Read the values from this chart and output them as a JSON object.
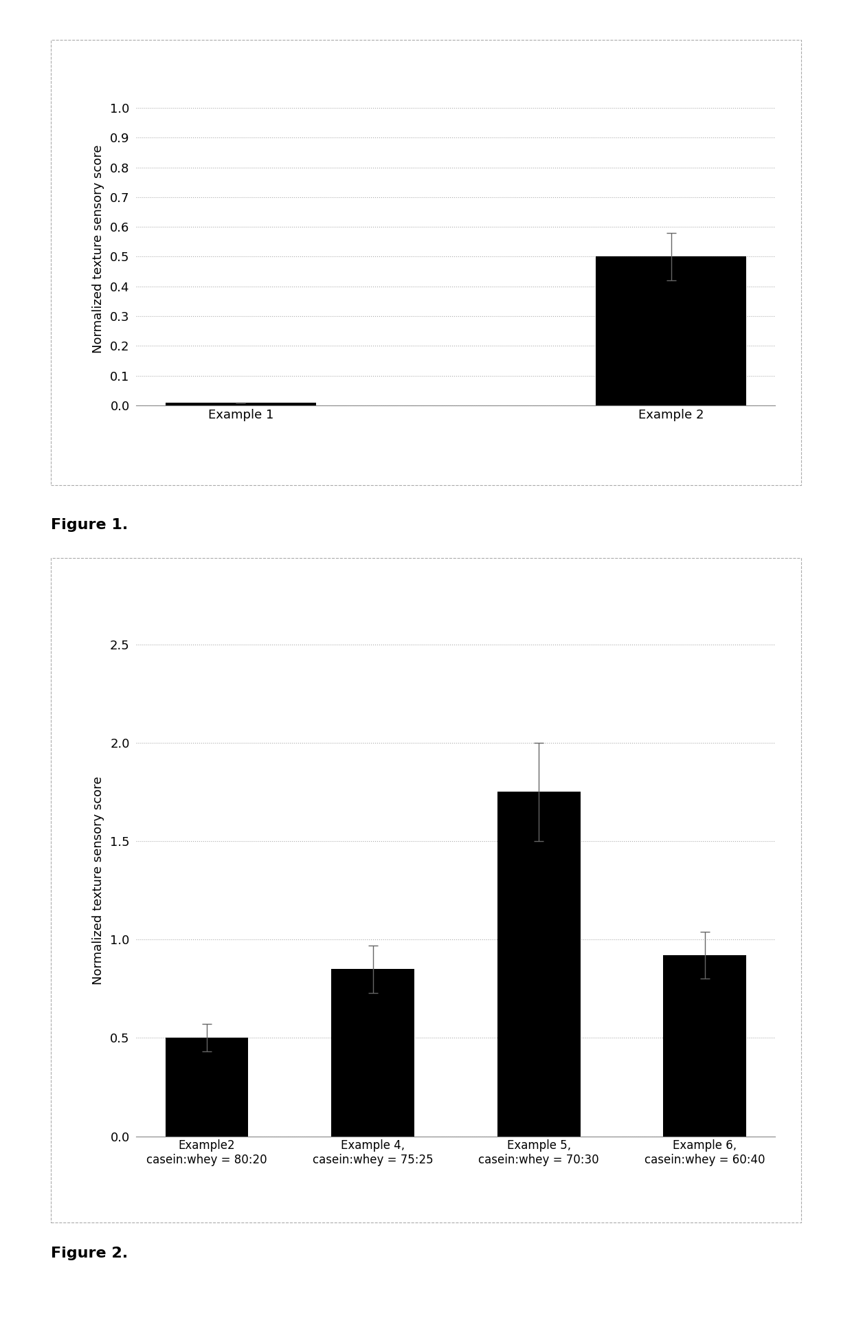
{
  "fig1": {
    "categories": [
      "Example 1",
      "Example 2"
    ],
    "values": [
      0.01,
      0.5
    ],
    "errors": [
      0.0,
      0.08
    ],
    "bar_color": "#000000",
    "ylabel": "Normalized texture sensory score",
    "ylim": [
      0,
      1.05
    ],
    "yticks": [
      0,
      0.1,
      0.2,
      0.3,
      0.4,
      0.5,
      0.6,
      0.7,
      0.8,
      0.9,
      1
    ],
    "title_label": "Figure 1.",
    "bar_width": 0.35
  },
  "fig2": {
    "categories": [
      "Example2\ncasein:whey = 80:20",
      "Example 4,\ncasein:whey = 75:25",
      "Example 5,\ncasein:whey = 70:30",
      "Example 6,\ncasein:whey = 60:40"
    ],
    "values": [
      0.5,
      0.85,
      1.75,
      0.92
    ],
    "errors": [
      0.07,
      0.12,
      0.25,
      0.12
    ],
    "bar_color": "#000000",
    "ylabel": "Normalized texture sensory score",
    "ylim": [
      0,
      2.6
    ],
    "yticks": [
      0,
      0.5,
      1,
      1.5,
      2,
      2.5
    ],
    "title_label": "Figure 2.",
    "bar_width": 0.5
  },
  "background_color": "#ffffff",
  "grid_color": "#aaaaaa",
  "page_bg": "#f0f0f0",
  "tick_fontsize": 13,
  "label_fontsize": 13,
  "figure_label_fontsize": 16,
  "border_color": "#aaaaaa",
  "border_style": "--"
}
